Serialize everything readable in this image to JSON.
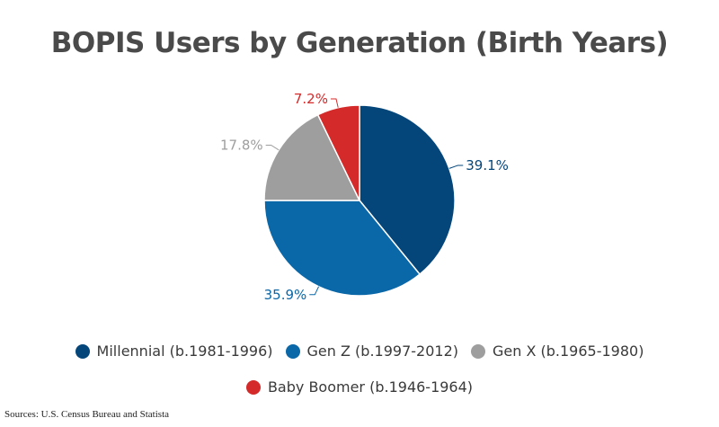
{
  "chart_data": {
    "type": "pie",
    "title": "BOPIS Users by Generation (Birth Years)",
    "slices": [
      {
        "name": "Millennial (b.1981-1996)",
        "value": 39.1,
        "label": "39.1%",
        "color": "#04467a"
      },
      {
        "name": "Gen Z (b.1997-2012)",
        "value": 35.9,
        "label": "35.9%",
        "color": "#0a67a8"
      },
      {
        "name": "Gen X (b.1965-1980)",
        "value": 17.8,
        "label": "17.8%",
        "color": "#9e9e9e"
      },
      {
        "name": "Baby Boomer (b.1946-1964)",
        "value": 7.2,
        "label": "7.2%",
        "color": "#d42a2a"
      }
    ],
    "legend_position": "bottom"
  },
  "source": "Sources: U.S. Census Bureau and Statista"
}
